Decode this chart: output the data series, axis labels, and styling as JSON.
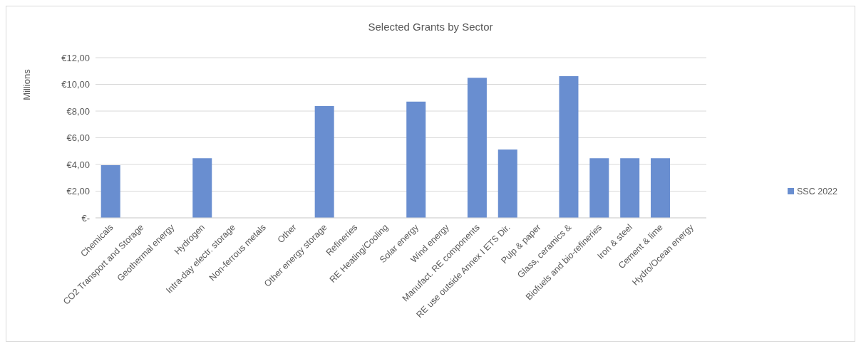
{
  "chart_data": {
    "type": "bar",
    "title": "Selected Grants by Sector",
    "ylabel": "Millions",
    "categories": [
      "Chemicals",
      "CO2 Transport and Storage",
      "Geothermal energy",
      "Hydrogen",
      "Intra-day electr. storage",
      "Non-ferrous metals",
      "Other",
      "Other energy storage",
      "Refineries",
      "RE Heating/Cooling",
      "Solar energy",
      "Wind energy",
      "Manufact. RE components",
      "RE use outside Annex I ETS Dir.",
      "Pulp & paper",
      "Glass, ceramics &",
      "Biofuels and bio-refineries",
      "Iron & steel",
      "Cement & lime",
      "Hydro/Ocean energy"
    ],
    "series": [
      {
        "name": "SSC 2022",
        "color": "#698ed0",
        "values": [
          3.95,
          null,
          null,
          4.47,
          null,
          null,
          null,
          8.37,
          null,
          null,
          8.71,
          null,
          10.49,
          5.12,
          null,
          10.62,
          4.47,
          4.47,
          4.47,
          null
        ]
      }
    ],
    "ylim": [
      0,
      12
    ],
    "yticks": [
      {
        "value": 0,
        "label": "€-"
      },
      {
        "value": 2,
        "label": "€2,00"
      },
      {
        "value": 4,
        "label": "€4,00"
      },
      {
        "value": 6,
        "label": "€6,00"
      },
      {
        "value": 8,
        "label": "€8,00"
      },
      {
        "value": 10,
        "label": "€10,00"
      },
      {
        "value": 12,
        "label": "€12,00"
      }
    ],
    "grid": "y",
    "legend": "right"
  }
}
